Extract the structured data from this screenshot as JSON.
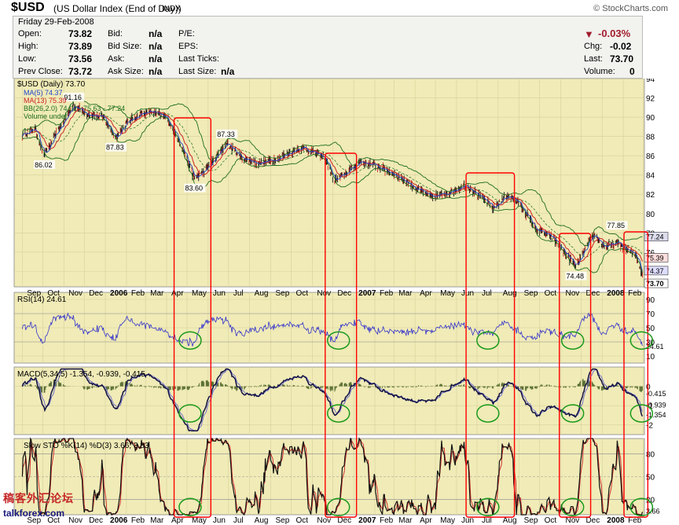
{
  "header": {
    "symbol": "$USD",
    "name": "(US Dollar Index (End of Day))",
    "exchange": "INDX",
    "site": "© StockCharts.com"
  },
  "quote": {
    "date": "Friday   29-Feb-2008",
    "open_label": "Open:",
    "open": "73.82",
    "high_label": "High:",
    "high": "73.89",
    "low_label": "Low:",
    "low": "73.56",
    "prev_label": "Prev Close:",
    "prev": "73.72",
    "bid_label": "Bid:",
    "bid": "n/a",
    "bidsize_label": "Bid Size:",
    "bidsize": "n/a",
    "ask_label": "Ask:",
    "ask": "n/a",
    "asksize_label": "Ask Size:",
    "asksize": "n/a",
    "pe_label": "P/E:",
    "eps_label": "EPS:",
    "lastticks_label": "Last Ticks:",
    "lastsize_label": "Last Size:",
    "lastsize": "n/a",
    "change_pct": "-0.03%",
    "chg_label": "Chg:",
    "chg": "-0.02",
    "last_label": "Last:",
    "last": "73.70",
    "vol_label": "Volume:",
    "volume": "0"
  },
  "colors": {
    "panel_bg": "#f0ebb7",
    "price_line": "#111111",
    "ma5": "#2244cc",
    "ma13": "#cc2222",
    "bb": "#1f6e1f",
    "rsi": "#3333cc",
    "macd": "#111144",
    "signal": "#6666cc",
    "histogram": "#556b2f",
    "sto_k": "#111111",
    "sto_d": "#cc2222",
    "highlight_box": "#ff0000",
    "highlight_circle": "#1a9a1a"
  },
  "chart_data": [
    {
      "type": "line",
      "title": "$USD (Daily) 73.70",
      "legend": [
        "MA(5) 74.37",
        "MA(13) 75.39",
        "BB(26,2.0) 74.02 - 75.63 - 77.24",
        "Volume undef"
      ],
      "legend_placement": "top-left",
      "ylim": [
        72.4,
        94
      ],
      "y_ticks": [
        "94",
        "92",
        "90",
        "88",
        "86",
        "84",
        "82",
        "80",
        "78",
        "76",
        "74"
      ],
      "price_tags": [
        "77.24",
        "75.39",
        "74.37",
        "73.70"
      ],
      "x_ticks": [
        "Sep",
        "Oct",
        "Nov",
        "Dec",
        "2006",
        "Feb",
        "Mar",
        "Apr",
        "May",
        "Jun",
        "Jul",
        "Aug",
        "Sep",
        "Oct",
        "Nov",
        "Dec",
        "2007",
        "Feb",
        "Mar",
        "Apr",
        "May",
        "Jun",
        "Jul",
        "Aug",
        "Sep",
        "Oct",
        "Nov",
        "Dec",
        "2008",
        "Feb"
      ],
      "annotations": [
        {
          "text": "86.02",
          "date": "2005-10-03",
          "value": 86.02
        },
        {
          "text": "91.16",
          "date": "2005-11-15",
          "value": 91.16
        },
        {
          "text": "87.83",
          "date": "2006-01-16",
          "value": 87.83
        },
        {
          "text": "83.60",
          "date": "2006-05-12",
          "value": 83.6
        },
        {
          "text": "87.33",
          "date": "2006-06-28",
          "value": 87.33
        },
        {
          "text": "77.85",
          "date": "2008-01-22",
          "value": 77.85
        },
        {
          "text": "74.48",
          "date": "2007-11-23",
          "value": 74.48
        }
      ],
      "series": [
        {
          "name": "$USD (Daily)",
          "points": [
            [
              "2005-09-01",
              88.2
            ],
            [
              "2005-09-20",
              88.8
            ],
            [
              "2005-10-03",
              86.0
            ],
            [
              "2005-10-25",
              88.8
            ],
            [
              "2005-11-15",
              91.2
            ],
            [
              "2005-12-08",
              90.3
            ],
            [
              "2005-12-28",
              90.0
            ],
            [
              "2006-01-16",
              87.9
            ],
            [
              "2006-02-01",
              89.4
            ],
            [
              "2006-02-20",
              90.3
            ],
            [
              "2006-03-10",
              90.6
            ],
            [
              "2006-04-01",
              89.9
            ],
            [
              "2006-04-20",
              87.5
            ],
            [
              "2006-05-12",
              83.6
            ],
            [
              "2006-06-01",
              84.8
            ],
            [
              "2006-06-28",
              87.3
            ],
            [
              "2006-07-20",
              85.8
            ],
            [
              "2006-08-15",
              85.2
            ],
            [
              "2006-09-15",
              85.8
            ],
            [
              "2006-10-15",
              86.9
            ],
            [
              "2006-11-01",
              86.4
            ],
            [
              "2006-11-20",
              85.7
            ],
            [
              "2006-12-04",
              83.4
            ],
            [
              "2006-12-20",
              84.2
            ],
            [
              "2007-01-10",
              85.4
            ],
            [
              "2007-02-01",
              85.0
            ],
            [
              "2007-03-01",
              84.1
            ],
            [
              "2007-04-01",
              82.7
            ],
            [
              "2007-04-25",
              81.7
            ],
            [
              "2007-05-20",
              82.2
            ],
            [
              "2007-06-15",
              83.0
            ],
            [
              "2007-07-01",
              82.0
            ],
            [
              "2007-07-25",
              80.6
            ],
            [
              "2007-08-15",
              81.9
            ],
            [
              "2007-09-01",
              81.1
            ],
            [
              "2007-09-25",
              78.4
            ],
            [
              "2007-10-20",
              77.5
            ],
            [
              "2007-11-10",
              75.7
            ],
            [
              "2007-11-23",
              74.5
            ],
            [
              "2007-12-10",
              76.7
            ],
            [
              "2007-12-20",
              77.8
            ],
            [
              "2008-01-05",
              76.5
            ],
            [
              "2008-01-22",
              77.0
            ],
            [
              "2008-02-05",
              76.3
            ],
            [
              "2008-02-20",
              75.6
            ],
            [
              "2008-02-29",
              73.7
            ]
          ]
        }
      ]
    },
    {
      "type": "line",
      "title": "RSI(14) 24.61",
      "ylim": [
        0,
        100
      ],
      "y_ticks": [
        "90",
        "70",
        "50",
        "30",
        "10"
      ],
      "value_tag": "24.61",
      "series": [
        {
          "name": "RSI(14)",
          "last": 24.61
        }
      ]
    },
    {
      "type": "line",
      "title": "MACD(5,34,5) -1.354, -0.939, -0.415",
      "ylim": [
        -2.5,
        1
      ],
      "y_ticks": [
        "0",
        "-1",
        "-2"
      ],
      "value_tags": [
        "-0.415",
        "-0.939",
        "-1.354"
      ],
      "series": [
        {
          "name": "MACD",
          "last": -1.354
        },
        {
          "name": "Signal",
          "last": -0.939
        },
        {
          "name": "Histogram",
          "last": -0.415
        }
      ]
    },
    {
      "type": "line",
      "title": "Slow STO %K(14) %D(3) 3.66, 3.83",
      "ylim": [
        0,
        100
      ],
      "y_ticks": [
        "80",
        "50",
        "20"
      ],
      "value_tag": "3.66",
      "series": [
        {
          "name": "%K(14)",
          "last": 3.66
        },
        {
          "name": "%D(3)",
          "last": 3.83
        }
      ]
    }
  ],
  "highlights": [
    {
      "from": "2006-04-12",
      "to": "2006-06-05"
    },
    {
      "from": "2006-11-20",
      "to": "2007-01-05"
    },
    {
      "from": "2007-06-15",
      "to": "2007-08-25"
    },
    {
      "from": "2007-10-30",
      "to": "2007-12-15"
    },
    {
      "from": "2008-02-02",
      "to": "2008-03-08"
    }
  ],
  "watermark": {
    "line1": "稿客外汇论坛",
    "line2": "talkforex.com"
  }
}
